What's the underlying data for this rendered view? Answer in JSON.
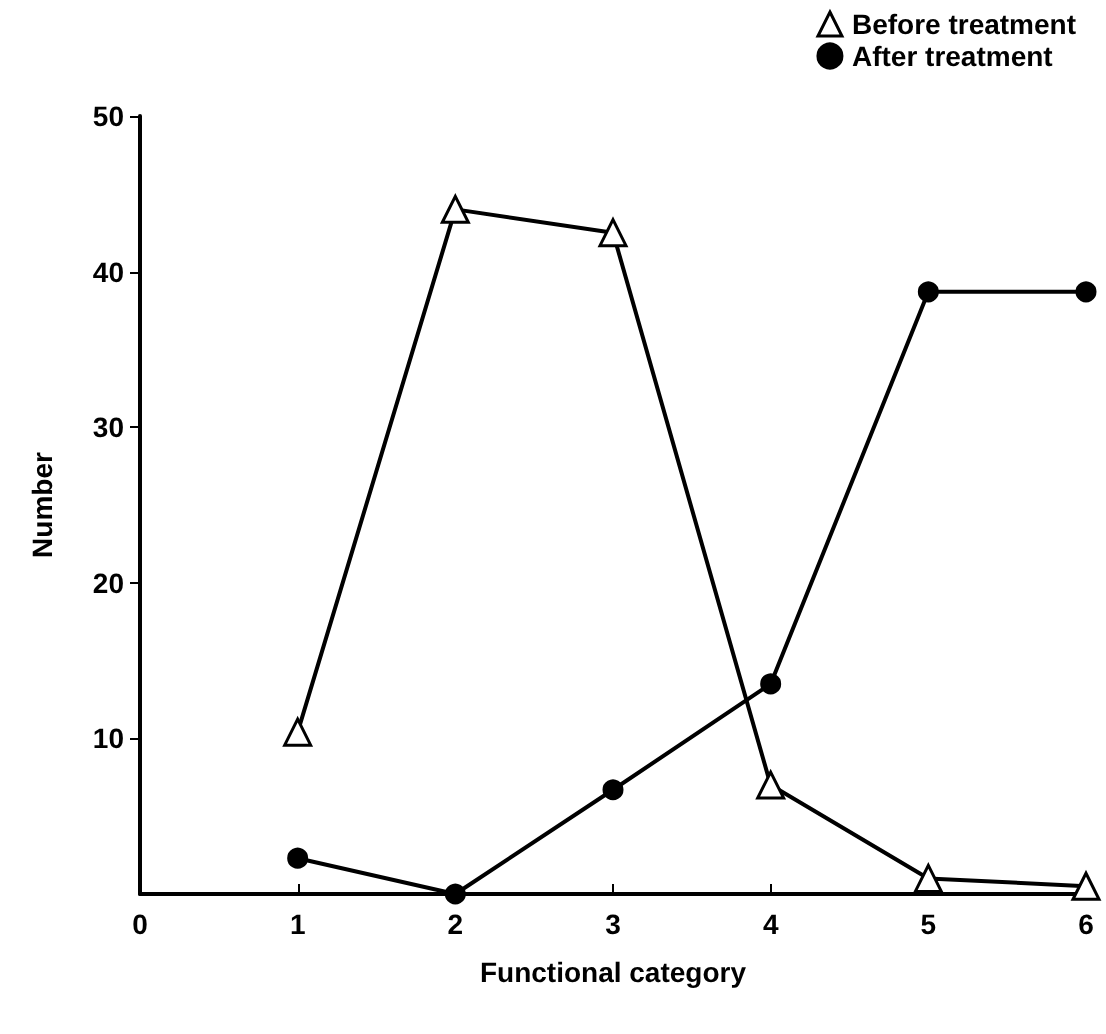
{
  "chart_data": {
    "type": "line",
    "xlabel": "Functional category",
    "ylabel": "Number",
    "xlim": [
      0,
      6
    ],
    "xticks": [
      0,
      1,
      2,
      3,
      4,
      5,
      6
    ],
    "ylim": [
      0,
      50
    ],
    "yticks": [
      10,
      20,
      30,
      40,
      50
    ],
    "grid": false,
    "legend": "top right",
    "series": [
      {
        "name": "Before treatment",
        "color": "#000000",
        "marker": "triangle",
        "x": [
          1,
          2,
          3,
          4,
          5,
          6
        ],
        "values": [
          10.4,
          44,
          42.5,
          7,
          1,
          0.5
        ]
      },
      {
        "name": "After treatment",
        "color": "#000000",
        "marker": "circle",
        "x": [
          1,
          2,
          3,
          4,
          5,
          6
        ],
        "values": [
          2.3,
          0,
          6.7,
          13.5,
          38.7,
          38.7
        ]
      }
    ]
  }
}
